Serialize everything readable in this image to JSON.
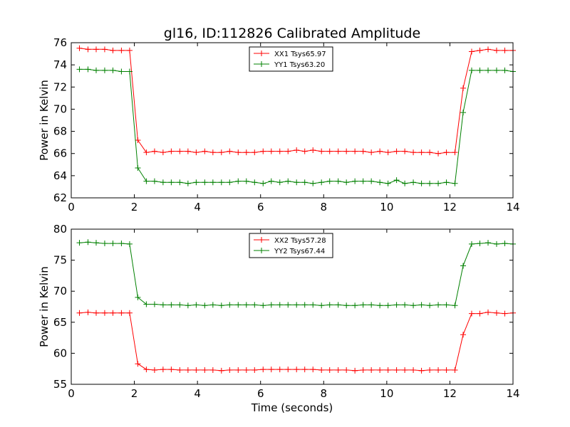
{
  "figure": {
    "title": "gl16, ID:112826 Calibrated Amplitude",
    "xlabel": "Time (seconds)"
  },
  "chart_data": [
    {
      "type": "line",
      "ylabel": "Power in Kelvin",
      "xlim": [
        0,
        14
      ],
      "ylim": [
        62,
        76
      ],
      "xticks": [
        "0",
        "2",
        "4",
        "6",
        "8",
        "10",
        "12",
        "14"
      ],
      "yticks": [
        "62",
        "64",
        "66",
        "68",
        "70",
        "72",
        "74",
        "76"
      ],
      "legend_position": "top-center",
      "x": [
        0.26,
        0.53,
        0.79,
        1.06,
        1.32,
        1.59,
        1.85,
        2.11,
        2.38,
        2.64,
        2.91,
        3.17,
        3.44,
        3.7,
        3.96,
        4.23,
        4.49,
        4.76,
        5.02,
        5.29,
        5.55,
        5.81,
        6.08,
        6.34,
        6.61,
        6.87,
        7.14,
        7.4,
        7.66,
        7.93,
        8.19,
        8.46,
        8.72,
        8.99,
        9.25,
        9.51,
        9.78,
        10.04,
        10.31,
        10.57,
        10.84,
        11.1,
        11.36,
        11.63,
        11.89,
        12.16,
        12.42,
        12.69,
        12.95,
        13.21,
        13.48,
        13.74,
        14.0
      ],
      "series": [
        {
          "name": "XX1 Tsys65.97",
          "color": "#ff0000",
          "values": [
            75.5,
            75.4,
            75.4,
            75.4,
            75.3,
            75.3,
            75.3,
            67.2,
            66.1,
            66.2,
            66.1,
            66.2,
            66.2,
            66.2,
            66.1,
            66.2,
            66.1,
            66.1,
            66.2,
            66.1,
            66.1,
            66.1,
            66.2,
            66.2,
            66.2,
            66.2,
            66.3,
            66.2,
            66.3,
            66.2,
            66.2,
            66.2,
            66.2,
            66.2,
            66.2,
            66.1,
            66.2,
            66.1,
            66.2,
            66.2,
            66.1,
            66.1,
            66.1,
            66.0,
            66.1,
            66.1,
            71.9,
            75.2,
            75.3,
            75.4,
            75.3,
            75.3,
            75.3
          ]
        },
        {
          "name": "YY1 Tsys63.20",
          "color": "#008000",
          "values": [
            73.6,
            73.6,
            73.5,
            73.5,
            73.5,
            73.4,
            73.4,
            64.7,
            63.5,
            63.5,
            63.4,
            63.4,
            63.4,
            63.3,
            63.4,
            63.4,
            63.4,
            63.4,
            63.4,
            63.5,
            63.5,
            63.4,
            63.3,
            63.5,
            63.4,
            63.5,
            63.4,
            63.4,
            63.3,
            63.4,
            63.5,
            63.5,
            63.4,
            63.5,
            63.5,
            63.5,
            63.4,
            63.3,
            63.6,
            63.3,
            63.4,
            63.3,
            63.3,
            63.3,
            63.4,
            63.3,
            69.7,
            73.5,
            73.5,
            73.5,
            73.5,
            73.5,
            73.4
          ]
        }
      ]
    },
    {
      "type": "line",
      "ylabel": "Power in Kelvin",
      "xlim": [
        0,
        14
      ],
      "ylim": [
        55,
        80
      ],
      "xticks": [
        "0",
        "2",
        "4",
        "6",
        "8",
        "10",
        "12",
        "14"
      ],
      "yticks": [
        "55",
        "60",
        "65",
        "70",
        "75",
        "80"
      ],
      "legend_position": "top-center",
      "x": [
        0.26,
        0.53,
        0.79,
        1.06,
        1.32,
        1.59,
        1.85,
        2.11,
        2.38,
        2.64,
        2.91,
        3.17,
        3.44,
        3.7,
        3.96,
        4.23,
        4.49,
        4.76,
        5.02,
        5.29,
        5.55,
        5.81,
        6.08,
        6.34,
        6.61,
        6.87,
        7.14,
        7.4,
        7.66,
        7.93,
        8.19,
        8.46,
        8.72,
        8.99,
        9.25,
        9.51,
        9.78,
        10.04,
        10.31,
        10.57,
        10.84,
        11.1,
        11.36,
        11.63,
        11.89,
        12.16,
        12.42,
        12.69,
        12.95,
        13.21,
        13.48,
        13.74,
        14.0
      ],
      "series": [
        {
          "name": "XX2 Tsys57.28",
          "color": "#ff0000",
          "values": [
            66.5,
            66.6,
            66.5,
            66.5,
            66.5,
            66.5,
            66.5,
            58.3,
            57.4,
            57.3,
            57.4,
            57.4,
            57.3,
            57.3,
            57.3,
            57.3,
            57.3,
            57.2,
            57.3,
            57.3,
            57.3,
            57.3,
            57.4,
            57.4,
            57.4,
            57.4,
            57.4,
            57.4,
            57.4,
            57.3,
            57.3,
            57.3,
            57.3,
            57.2,
            57.3,
            57.3,
            57.3,
            57.3,
            57.3,
            57.3,
            57.3,
            57.2,
            57.3,
            57.3,
            57.3,
            57.3,
            63.0,
            66.4,
            66.4,
            66.6,
            66.5,
            66.4,
            66.5
          ]
        },
        {
          "name": "YY2 Tsys67.44",
          "color": "#008000",
          "values": [
            77.8,
            77.9,
            77.8,
            77.7,
            77.7,
            77.7,
            77.6,
            69.0,
            67.9,
            67.9,
            67.8,
            67.8,
            67.8,
            67.7,
            67.8,
            67.7,
            67.8,
            67.7,
            67.8,
            67.8,
            67.8,
            67.8,
            67.7,
            67.8,
            67.8,
            67.8,
            67.8,
            67.8,
            67.8,
            67.7,
            67.8,
            67.8,
            67.7,
            67.7,
            67.8,
            67.8,
            67.7,
            67.7,
            67.8,
            67.8,
            67.7,
            67.8,
            67.7,
            67.8,
            67.8,
            67.7,
            74.1,
            77.6,
            77.7,
            77.8,
            77.6,
            77.7,
            77.6
          ]
        }
      ]
    }
  ]
}
